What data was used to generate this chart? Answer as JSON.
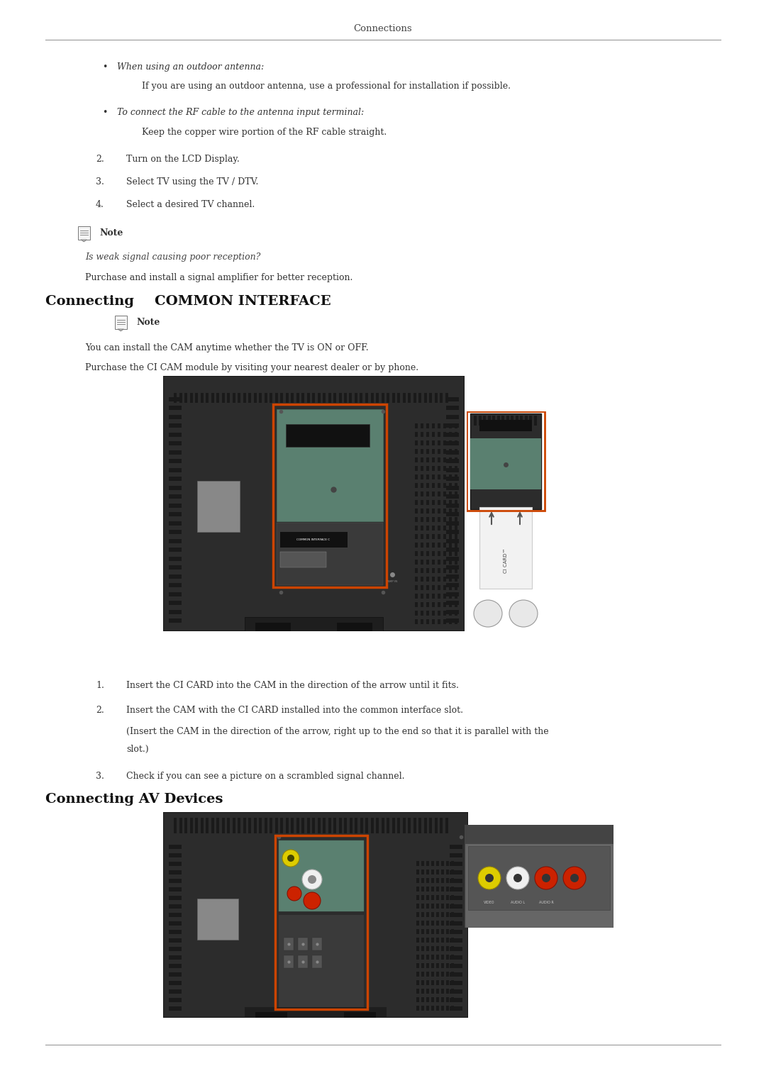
{
  "bg_color": "#ffffff",
  "header": "Connections",
  "bullet1_italic": "When using an outdoor antenna:",
  "bullet1_text": "If you are using an outdoor antenna, use a professional for installation if possible.",
  "bullet2_italic": "To connect the RF cable to the antenna input terminal:",
  "bullet2_text": "Keep the copper wire portion of the RF cable straight.",
  "item2": "Turn on the LCD Display.",
  "item3": "Select TV using the TV / DTV.",
  "item4": "Select a desired TV channel.",
  "note1_italic": "Is weak signal causing poor reception?",
  "note1_text": "Purchase and install a signal amplifier for better reception.",
  "section1_a": "Connecting ",
  "section1_b": "COMMON INTERFACE",
  "cam_text1": "You can install the CAM anytime whether the TV is ON or OFF.",
  "cam_text2": "Purchase the CI CAM module by visiting your nearest dealer or by phone.",
  "ci_list1": "Insert the CI CARD into the CAM in the direction of the arrow until it fits.",
  "ci_list2": "Insert the CAM with the CI CARD installed into the common interface slot.",
  "ci_list2_line1": "(Insert the CAM in the direction of the arrow, right up to the end so that it is parallel with the",
  "ci_list2_line2": "slot.)",
  "ci_list3": "Check if you can see a picture on a scrambled signal channel.",
  "section2": "Connecting AV Devices",
  "note_label": "Note"
}
